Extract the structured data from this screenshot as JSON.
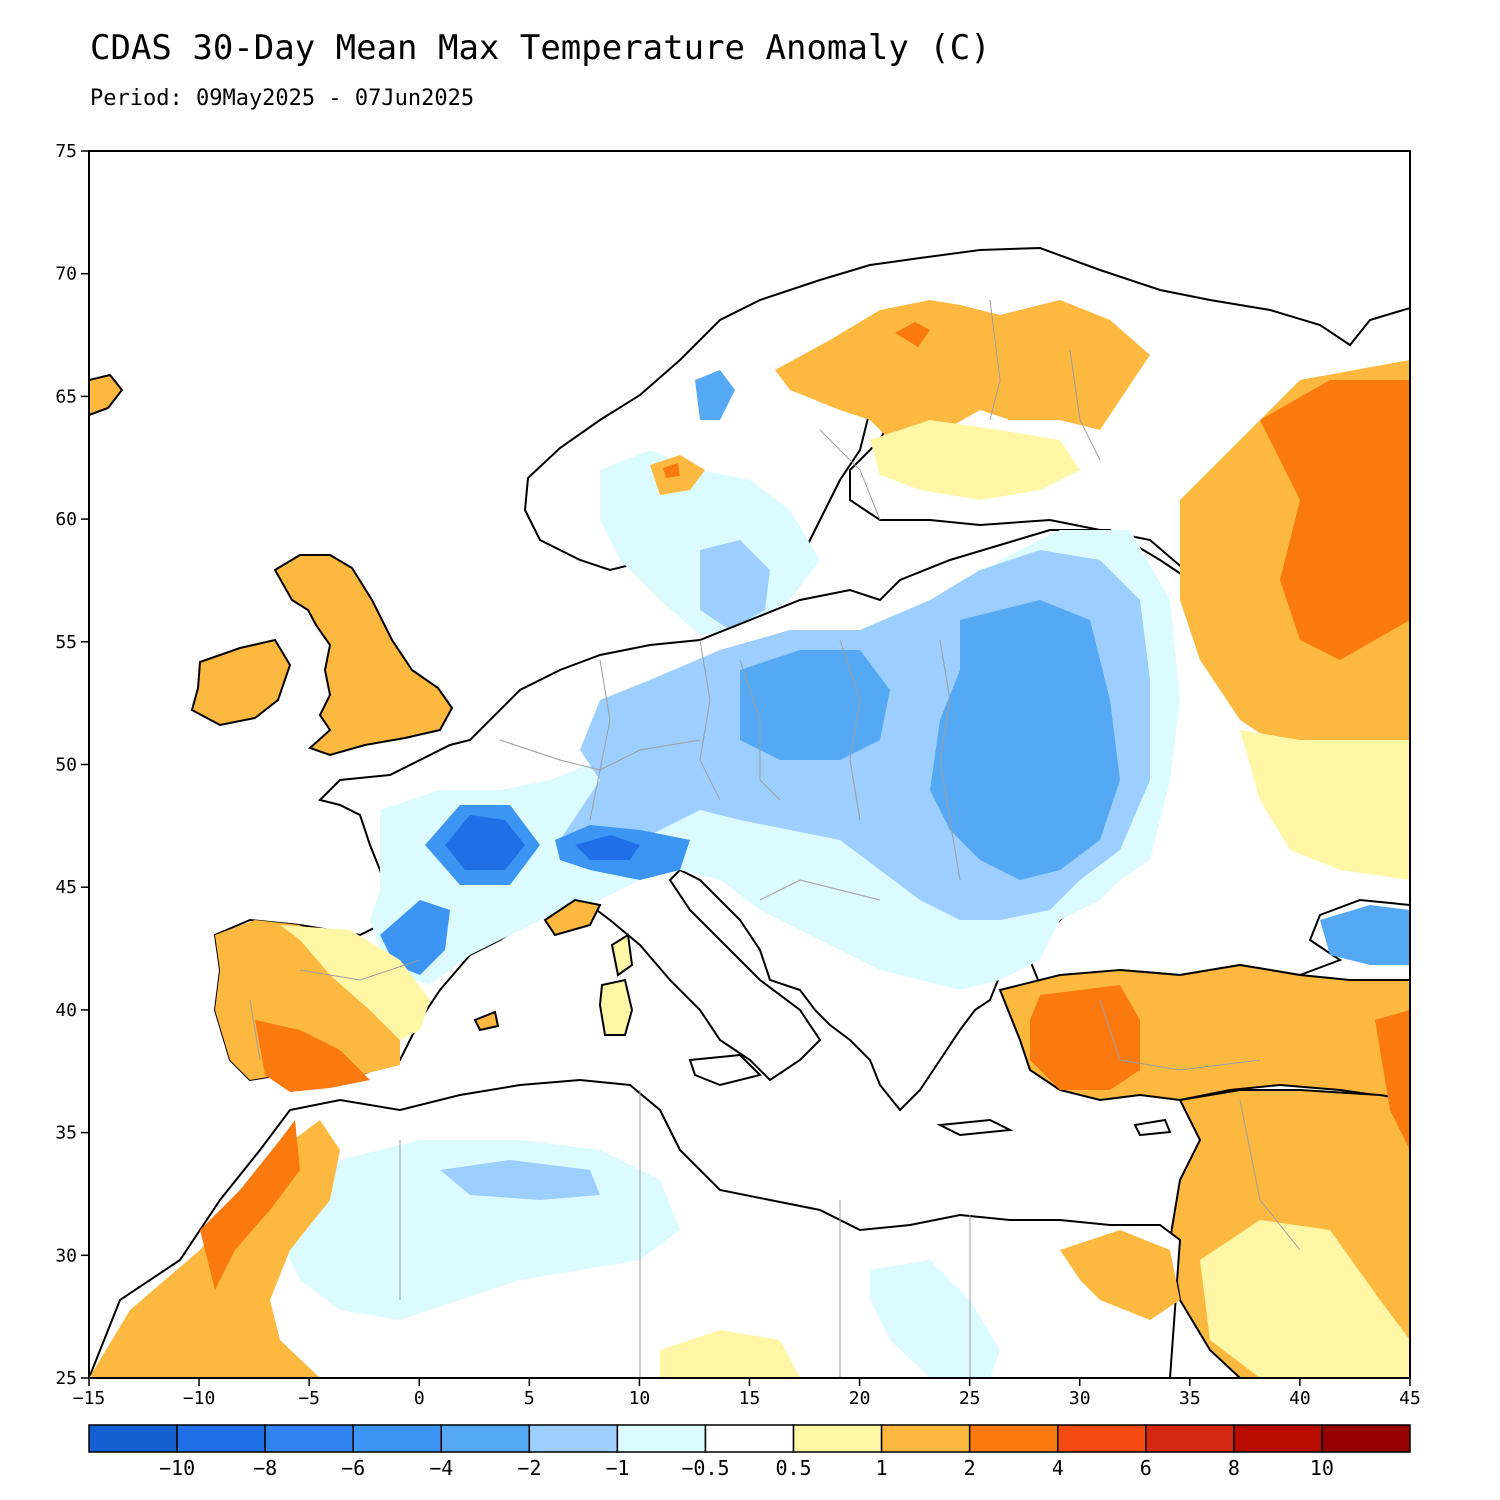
{
  "title": "CDAS 30-Day Mean Max Temperature Anomaly (C)",
  "subtitle": "Period: 09May2025 - 07Jun2025",
  "axes": {
    "x_ticks": [
      "−15",
      "−10",
      "−5",
      "0",
      "5",
      "10",
      "15",
      "20",
      "25",
      "30",
      "35",
      "40",
      "45"
    ],
    "y_ticks": [
      "75",
      "70",
      "65",
      "60",
      "55",
      "50",
      "45",
      "40",
      "35",
      "30",
      "25"
    ]
  },
  "colorbar": {
    "colors": [
      "#1560d0",
      "#1f70e6",
      "#2f84f0",
      "#3c95f2",
      "#55a8f4",
      "#9ccfff",
      "#dcfbff",
      "#ffffff",
      "#fff7a6",
      "#fdb840",
      "#fb7a10",
      "#f54b10",
      "#d42810",
      "#b80c00",
      "#960000"
    ],
    "labels": [
      "−10",
      "−8",
      "−6",
      "−4",
      "−2",
      "−1",
      "−0.5",
      "0.5",
      "1",
      "2",
      "4",
      "6",
      "8",
      "10"
    ]
  },
  "map_colors": {
    "land_outline": "#000000",
    "borders": "#9e9e9e",
    "sea": "#ffffff"
  }
}
